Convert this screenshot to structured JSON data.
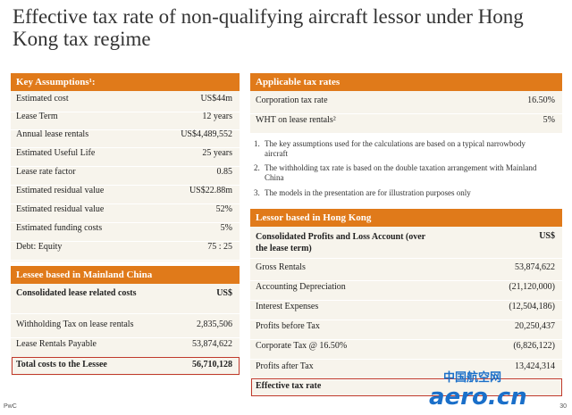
{
  "title": "Effective tax rate of non-qualifying aircraft lessor under Hong Kong tax regime",
  "key_assumptions": {
    "header": "Key Assumptions¹:",
    "rows": [
      {
        "label": "Estimated cost",
        "value": "US$44m"
      },
      {
        "label": "Lease Term",
        "value": "12 years"
      },
      {
        "label": "Annual lease rentals",
        "value": "US$4,489,552"
      },
      {
        "label": "Estimated Useful Life",
        "value": "25 years"
      },
      {
        "label": "Lease rate factor",
        "value": "0.85"
      },
      {
        "label": "Estimated residual value",
        "value": "US$22.88m"
      },
      {
        "label": "Estimated residual value",
        "value": "52%"
      },
      {
        "label": "Estimated funding costs",
        "value": "5%"
      },
      {
        "label": "Debt: Equity",
        "value": "75 : 25"
      }
    ]
  },
  "lessee": {
    "header": "Lessee  based in Mainland China",
    "heading_label": "Consolidated lease related costs",
    "heading_unit": "US$",
    "rows": [
      {
        "label": "Withholding Tax on lease rentals",
        "value": "2,835,506"
      },
      {
        "label": "Lease Rentals Payable",
        "value": "53,874,622"
      }
    ],
    "total_label": "Total costs to the Lessee",
    "total_value": "56,710,128"
  },
  "applicable_rates": {
    "header": "Applicable tax rates",
    "rows": [
      {
        "label": "Corporation tax rate",
        "value": "16.50%"
      },
      {
        "label": "WHT on lease rentals²",
        "value": "5%"
      }
    ]
  },
  "notes": [
    {
      "num": "1.",
      "text": "The key assumptions used for the calculations are based on a typical narrowbody aircraft"
    },
    {
      "num": "2.",
      "text": "The withholding tax rate is based on the double taxation arrangement with Mainland China"
    },
    {
      "num": "3.",
      "text": "The models in the presentation are for illustration purposes only"
    }
  ],
  "lessor": {
    "header": "Lessor based in Hong Kong",
    "heading_label": "Consolidated Profits and Loss Account (over the lease term)",
    "heading_unit": "US$",
    "rows": [
      {
        "label": "Gross Rentals",
        "value": "53,874,622"
      },
      {
        "label": "Accounting Depreciation",
        "value": "(21,120,000)"
      },
      {
        "label": "Interest Expenses",
        "value": "(12,504,186)"
      },
      {
        "label": "Profits before Tax",
        "value": "20,250,437"
      },
      {
        "label": "Corporate Tax @ 16.50%",
        "value": "(6,826,122)"
      },
      {
        "label": "Profits after Tax",
        "value": "13,424,314"
      }
    ],
    "total_label": "Effective tax rate"
  },
  "footer": {
    "brand": "PwC",
    "page": "30"
  },
  "watermark": {
    "cn": "中国航空网",
    "en": "aero.cn"
  },
  "colors": {
    "accent": "#e07a1a",
    "panel": "#f7f4ec",
    "highlight": "#c0392b"
  }
}
